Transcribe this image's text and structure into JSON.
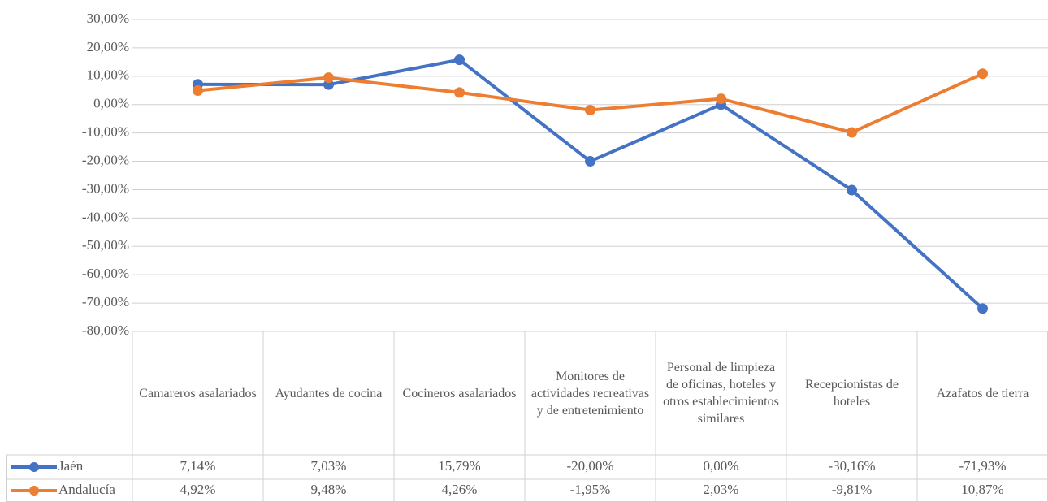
{
  "chart_data": {
    "type": "line",
    "categories": [
      "Camareros asalariados",
      "Ayudantes de cocina",
      "Cocineros asalariados",
      "Monitores de actividades recreativas y de entretenimiento",
      "Personal de limpieza de oficinas, hoteles y otros establecimientos similares",
      "Recepcionistas de hoteles",
      "Azafatos de tierra"
    ],
    "series": [
      {
        "name": "Jaén",
        "color": "#4472c4",
        "values": [
          7.14,
          7.03,
          15.79,
          -20.0,
          0.0,
          -30.16,
          -71.93
        ],
        "value_labels": [
          "7,14%",
          "7,03%",
          "15,79%",
          "-20,00%",
          "0,00%",
          "-30,16%",
          "-71,93%"
        ]
      },
      {
        "name": "Andalucía",
        "color": "#ed7d31",
        "values": [
          4.92,
          9.48,
          4.26,
          -1.95,
          2.03,
          -9.81,
          10.87
        ],
        "value_labels": [
          "4,92%",
          "9,48%",
          "4,26%",
          "-1,95%",
          "2,03%",
          "-9,81%",
          "10,87%"
        ]
      }
    ],
    "ylim": [
      -80,
      30
    ],
    "yticks": [
      {
        "value": 30,
        "label": "30,00%"
      },
      {
        "value": 20,
        "label": "20,00%"
      },
      {
        "value": 10,
        "label": "10,00%"
      },
      {
        "value": 0,
        "label": "0,00%"
      },
      {
        "value": -10,
        "label": "-10,00%"
      },
      {
        "value": -20,
        "label": "-20,00%"
      },
      {
        "value": -30,
        "label": "-30,00%"
      },
      {
        "value": -40,
        "label": "-40,00%"
      },
      {
        "value": -50,
        "label": "-50,00%"
      },
      {
        "value": -60,
        "label": "-60,00%"
      },
      {
        "value": -70,
        "label": "-70,00%"
      },
      {
        "value": -80,
        "label": "-80,00%"
      }
    ],
    "grid": true
  }
}
